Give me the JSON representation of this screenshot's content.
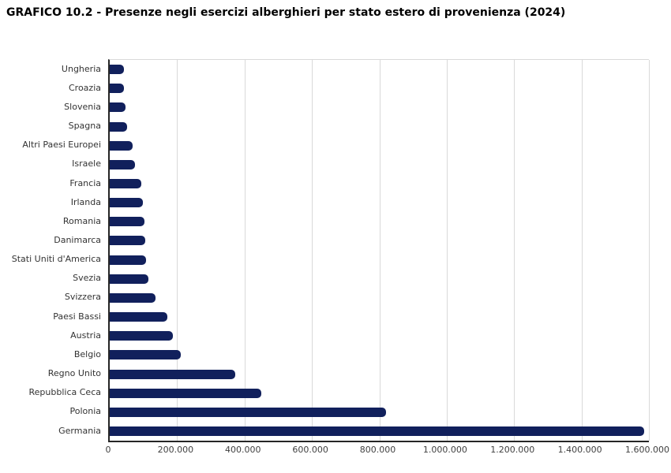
{
  "title": "GRAFICO 10.2 - Presenze negli esercizi alberghieri per stato estero di provenienza (2024)",
  "chart_data": {
    "type": "bar",
    "orientation": "horizontal",
    "title": "GRAFICO 10.2 - Presenze negli esercizi alberghieri per stato estero di provenienza (2024)",
    "categories": [
      "Ungheria",
      "Croazia",
      "Slovenia",
      "Spagna",
      "Altri Paesi Europei",
      "Israele",
      "Francia",
      "Irlanda",
      "Romania",
      "Danimarca",
      "Stati Uniti d'America",
      "Svezia",
      "Svizzera",
      "Paesi Bassi",
      "Austria",
      "Belgio",
      "Regno Unito",
      "Repubblica Ceca",
      "Polonia",
      "Germania"
    ],
    "values": [
      42000,
      43000,
      46000,
      51000,
      68000,
      75000,
      93000,
      99000,
      102000,
      106000,
      108000,
      115000,
      135000,
      170000,
      188000,
      212000,
      372000,
      450000,
      820000,
      1585000
    ],
    "x_ticks": [
      "0",
      "200.000",
      "400.000",
      "600.000",
      "800.000",
      "1.000.000",
      "1.200.000",
      "1.400.000",
      "1.600.000"
    ],
    "xlim": [
      0,
      1600000
    ],
    "xlabel": "",
    "ylabel": "",
    "grid": true,
    "legend": false,
    "bar_color": "#11205c",
    "grid_color": "#d9d9d9",
    "axis_color": "#262626"
  }
}
